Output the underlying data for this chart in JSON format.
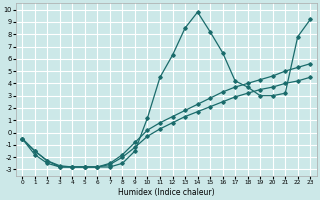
{
  "xlabel": "Humidex (Indice chaleur)",
  "bg_color": "#cce8e8",
  "grid_color": "#ffffff",
  "line_color": "#1a6b6b",
  "xlim": [
    -0.5,
    23.5
  ],
  "ylim": [
    -3.5,
    10.5
  ],
  "xticks": [
    0,
    1,
    2,
    3,
    4,
    5,
    6,
    7,
    8,
    9,
    10,
    11,
    12,
    13,
    14,
    15,
    16,
    17,
    18,
    19,
    20,
    21,
    22,
    23
  ],
  "yticks": [
    -3,
    -2,
    -1,
    0,
    1,
    2,
    3,
    4,
    5,
    6,
    7,
    8,
    9,
    10
  ],
  "line1_x": [
    0,
    1,
    2,
    3,
    4,
    5,
    6,
    7,
    8,
    9,
    10,
    11,
    12,
    13,
    14,
    15,
    16,
    17,
    18,
    19,
    20,
    21,
    22,
    23
  ],
  "line1_y": [
    -0.5,
    -1.8,
    -2.5,
    -2.8,
    -2.8,
    -2.8,
    -2.8,
    -2.8,
    -2.5,
    -1.5,
    1.2,
    4.5,
    6.3,
    8.5,
    9.8,
    8.2,
    6.5,
    4.2,
    3.7,
    3.0,
    3.0,
    3.2,
    7.8,
    9.2
  ],
  "line2_x": [
    0,
    1,
    2,
    3,
    4,
    5,
    6,
    7,
    8,
    9,
    10,
    11,
    12,
    13,
    14,
    15,
    16,
    17,
    18,
    19,
    20,
    21,
    22,
    23
  ],
  "line2_y": [
    -0.5,
    -1.5,
    -2.3,
    -2.8,
    -2.8,
    -2.8,
    -2.8,
    -2.5,
    -1.8,
    -0.8,
    0.2,
    0.8,
    1.3,
    1.8,
    2.3,
    2.8,
    3.3,
    3.7,
    4.0,
    4.3,
    4.6,
    5.0,
    5.3,
    5.6
  ],
  "line3_x": [
    0,
    1,
    2,
    3,
    4,
    5,
    6,
    7,
    8,
    9,
    10,
    11,
    12,
    13,
    14,
    15,
    16,
    17,
    18,
    19,
    20,
    21,
    22,
    23
  ],
  "line3_y": [
    -0.5,
    -1.5,
    -2.3,
    -2.7,
    -2.8,
    -2.8,
    -2.8,
    -2.6,
    -2.0,
    -1.2,
    -0.3,
    0.3,
    0.8,
    1.3,
    1.7,
    2.1,
    2.5,
    2.9,
    3.2,
    3.5,
    3.7,
    4.0,
    4.2,
    4.5
  ]
}
